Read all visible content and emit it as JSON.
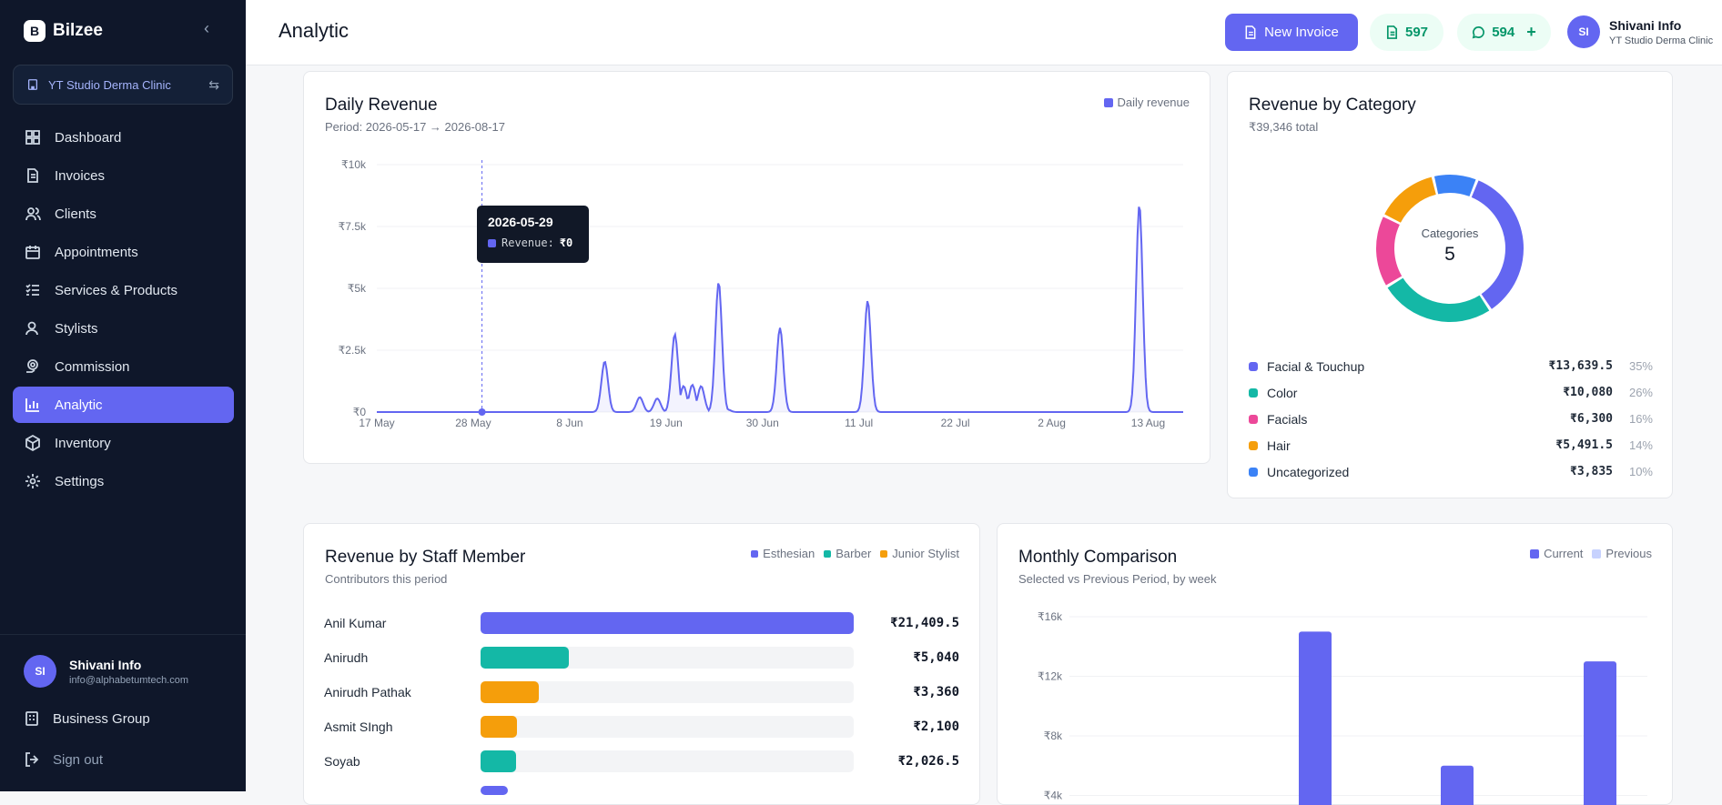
{
  "brand": {
    "name": "Bilzee",
    "logo_letter": "B"
  },
  "clinic_selector": {
    "label": "YT Studio Derma Clinic"
  },
  "nav": [
    {
      "label": "Dashboard",
      "icon": "dashboard-icon"
    },
    {
      "label": "Invoices",
      "icon": "invoice-icon"
    },
    {
      "label": "Clients",
      "icon": "users-icon"
    },
    {
      "label": "Appointments",
      "icon": "calendar-icon"
    },
    {
      "label": "Services & Products",
      "icon": "list-icon"
    },
    {
      "label": "Stylists",
      "icon": "stylist-icon"
    },
    {
      "label": "Commission",
      "icon": "commission-icon"
    },
    {
      "label": "Analytic",
      "icon": "bar-chart-icon",
      "active": true
    },
    {
      "label": "Inventory",
      "icon": "box-icon"
    },
    {
      "label": "Settings",
      "icon": "gear-icon"
    }
  ],
  "sidebar_user": {
    "initials": "SI",
    "name": "Shivani Info",
    "email": "info@alphabetumtech.com"
  },
  "business_group": {
    "label": "Business Group"
  },
  "sign_out": {
    "label": "Sign out"
  },
  "header": {
    "title": "Analytic",
    "new_invoice_label": "New Invoice",
    "invoice_count": "597",
    "message_count": "594",
    "user_initials": "SI",
    "user_name": "Shivani Info",
    "user_sub": "YT Studio Derma Clinic"
  },
  "daily_revenue": {
    "title": "Daily Revenue",
    "subtitle": "Period: 2026-05-17 → 2026-08-17",
    "legend": "Daily revenue",
    "tooltip": {
      "date": "2026-05-29",
      "label": "Revenue:",
      "value": "₹0"
    }
  },
  "revenue_by_category": {
    "title": "Revenue by Category",
    "subtitle": "₹39,346 total",
    "center_label": "Categories",
    "center_value": "5",
    "items": [
      {
        "name": "Facial & Touchup",
        "value": "₹13,639.5",
        "pct": "35%",
        "color": "#6366f1"
      },
      {
        "name": "Color",
        "value": "₹10,080",
        "pct": "26%",
        "color": "#14b8a6"
      },
      {
        "name": "Facials",
        "value": "₹6,300",
        "pct": "16%",
        "color": "#ec4899"
      },
      {
        "name": "Hair",
        "value": "₹5,491.5",
        "pct": "14%",
        "color": "#f59e0b"
      },
      {
        "name": "Uncategorized",
        "value": "₹3,835",
        "pct": "10%",
        "color": "#3b82f6"
      }
    ]
  },
  "staff_revenue": {
    "title": "Revenue by Staff Member",
    "subtitle": "Contributors this period",
    "legend": [
      {
        "name": "Esthesian",
        "color": "#6366f1"
      },
      {
        "name": "Barber",
        "color": "#14b8a6"
      },
      {
        "name": "Junior Stylist",
        "color": "#f59e0b"
      }
    ],
    "rows": [
      {
        "name": "Anil Kumar",
        "value": "₹21,409.5",
        "amount": 21409.5,
        "color": "#6366f1"
      },
      {
        "name": "Anirudh",
        "value": "₹5,040",
        "amount": 5040,
        "color": "#14b8a6"
      },
      {
        "name": "Anirudh Pathak",
        "value": "₹3,360",
        "amount": 3360,
        "color": "#f59e0b"
      },
      {
        "name": "Asmit SIngh",
        "value": "₹2,100",
        "amount": 2100,
        "color": "#f59e0b"
      },
      {
        "name": "Soyab",
        "value": "₹2,026.5",
        "amount": 2026.5,
        "color": "#14b8a6"
      }
    ]
  },
  "monthly_comparison": {
    "title": "Monthly Comparison",
    "subtitle": "Selected vs Previous Period, by week",
    "legend": [
      {
        "name": "Current",
        "color": "#6366f1"
      },
      {
        "name": "Previous",
        "color": "#c7d2fe"
      }
    ]
  },
  "chart_data": [
    {
      "type": "area",
      "title": "Daily Revenue",
      "series": [
        {
          "name": "Daily revenue",
          "color": "#6366f1"
        }
      ],
      "x_ticks": [
        "17 May",
        "28 May",
        "8 Jun",
        "19 Jun",
        "30 Jun",
        "11 Jul",
        "22 Jul",
        "2 Aug",
        "13 Aug"
      ],
      "y_ticks": [
        "₹0",
        "₹2.5k",
        "₹5k",
        "₹7.5k",
        "₹10k"
      ],
      "ylim": [
        0,
        10000
      ],
      "x_start": "2026-05-17",
      "points": [
        {
          "date": "2026-06-12",
          "value": 2050
        },
        {
          "date": "2026-06-16",
          "value": 600
        },
        {
          "date": "2026-06-18",
          "value": 550
        },
        {
          "date": "2026-06-20",
          "value": 3150
        },
        {
          "date": "2026-06-21",
          "value": 1050
        },
        {
          "date": "2026-06-22",
          "value": 1100
        },
        {
          "date": "2026-06-23",
          "value": 1050
        },
        {
          "date": "2026-06-25",
          "value": 5250
        },
        {
          "date": "2026-06-26",
          "value": 100
        },
        {
          "date": "2026-07-02",
          "value": 3400
        },
        {
          "date": "2026-07-12",
          "value": 4500
        },
        {
          "date": "2026-08-12",
          "value": 8400
        }
      ],
      "highlight_date": "2026-05-29"
    },
    {
      "type": "pie",
      "title": "Revenue by Category",
      "categories": [
        "Facial & Touchup",
        "Color",
        "Facials",
        "Hair",
        "Uncategorized"
      ],
      "values": [
        13639.5,
        10080,
        6300,
        5491.5,
        3835
      ]
    },
    {
      "type": "bar",
      "title": "Revenue by Staff Member",
      "categories": [
        "Anil Kumar",
        "Anirudh",
        "Anirudh Pathak",
        "Asmit SIngh",
        "Soyab"
      ],
      "values": [
        21409.5,
        5040,
        3360,
        2100,
        2026.5
      ]
    },
    {
      "type": "bar",
      "title": "Monthly Comparison",
      "y_ticks": [
        "₹4k",
        "₹8k",
        "₹12k",
        "₹16k"
      ],
      "ylim": [
        0,
        16000
      ],
      "series": [
        {
          "name": "Current",
          "values": [
            15000,
            6000,
            13000
          ]
        }
      ]
    }
  ]
}
